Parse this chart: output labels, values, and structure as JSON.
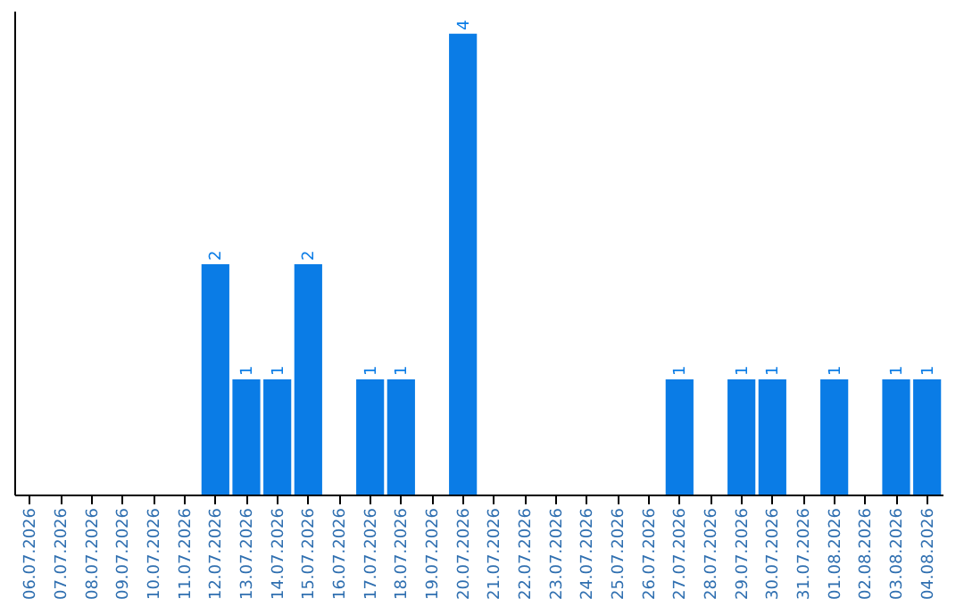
{
  "chart_data": {
    "type": "bar",
    "categories": [
      "06.07.2026",
      "07.07.2026",
      "08.07.2026",
      "09.07.2026",
      "10.07.2026",
      "11.07.2026",
      "12.07.2026",
      "13.07.2026",
      "14.07.2026",
      "15.07.2026",
      "16.07.2026",
      "17.07.2026",
      "18.07.2026",
      "19.07.2026",
      "20.07.2026",
      "21.07.2026",
      "22.07.2026",
      "23.07.2026",
      "24.07.2026",
      "25.07.2026",
      "26.07.2026",
      "27.07.2026",
      "28.07.2026",
      "29.07.2026",
      "30.07.2026",
      "31.07.2026",
      "01.08.2026",
      "02.08.2026",
      "03.08.2026",
      "04.08.2026"
    ],
    "values": [
      0,
      0,
      0,
      0,
      0,
      0,
      2,
      1,
      1,
      2,
      0,
      1,
      1,
      0,
      4,
      0,
      0,
      0,
      0,
      0,
      0,
      1,
      0,
      1,
      1,
      0,
      1,
      0,
      1,
      1
    ],
    "value_labels": [
      null,
      null,
      null,
      null,
      null,
      null,
      "2",
      "1",
      "1",
      "2",
      null,
      "1",
      "1",
      null,
      "4",
      null,
      null,
      null,
      null,
      null,
      null,
      "1",
      null,
      "1",
      "1",
      null,
      "1",
      null,
      "1",
      "1"
    ],
    "color": "#0a7ce6",
    "ylim": [
      0,
      4.2
    ],
    "tick_labels": "x",
    "grid": false
  }
}
